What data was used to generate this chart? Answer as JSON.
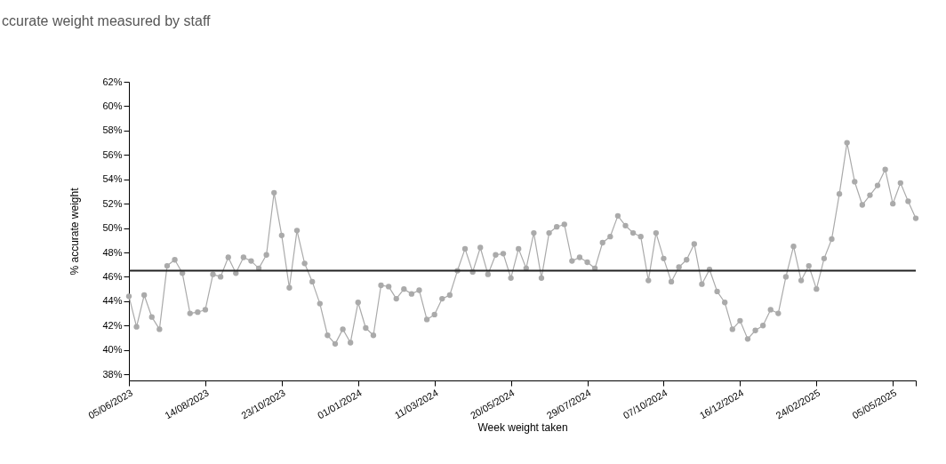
{
  "chart_data": {
    "type": "line",
    "subtitle": "ccurate weight measured by staff",
    "xlabel": "Week weight taken",
    "ylabel": "% accurate weight",
    "x": [
      "2023-06-05",
      "2023-06-12",
      "2023-06-19",
      "2023-06-26",
      "2023-07-03",
      "2023-07-10",
      "2023-07-17",
      "2023-07-24",
      "2023-07-31",
      "2023-08-07",
      "2023-08-14",
      "2023-08-21",
      "2023-08-28",
      "2023-09-04",
      "2023-09-11",
      "2023-09-18",
      "2023-09-25",
      "2023-10-02",
      "2023-10-09",
      "2023-10-16",
      "2023-10-23",
      "2023-10-30",
      "2023-11-06",
      "2023-11-13",
      "2023-11-20",
      "2023-11-27",
      "2023-12-04",
      "2023-12-11",
      "2023-12-18",
      "2023-12-25",
      "2024-01-01",
      "2024-01-08",
      "2024-01-15",
      "2024-01-22",
      "2024-01-29",
      "2024-02-05",
      "2024-02-12",
      "2024-02-19",
      "2024-02-26",
      "2024-03-04",
      "2024-03-11",
      "2024-03-18",
      "2024-03-25",
      "2024-04-01",
      "2024-04-08",
      "2024-04-15",
      "2024-04-22",
      "2024-04-29",
      "2024-05-06",
      "2024-05-13",
      "2024-05-20",
      "2024-05-27",
      "2024-06-03",
      "2024-06-10",
      "2024-06-17",
      "2024-06-24",
      "2024-07-01",
      "2024-07-08",
      "2024-07-15",
      "2024-07-22",
      "2024-07-29",
      "2024-08-05",
      "2024-08-12",
      "2024-08-19",
      "2024-08-26",
      "2024-09-02",
      "2024-09-09",
      "2024-09-16",
      "2024-09-23",
      "2024-09-30",
      "2024-10-07",
      "2024-10-14",
      "2024-10-21",
      "2024-10-28",
      "2024-11-04",
      "2024-11-11",
      "2024-11-18",
      "2024-11-25",
      "2024-12-02",
      "2024-12-09",
      "2024-12-16",
      "2024-12-23",
      "2024-12-30",
      "2025-01-06",
      "2025-01-13",
      "2025-01-20",
      "2025-01-27",
      "2025-02-03",
      "2025-02-10",
      "2025-02-17",
      "2025-02-24",
      "2025-03-03",
      "2025-03-10",
      "2025-03-17",
      "2025-03-24",
      "2025-03-31",
      "2025-04-07",
      "2025-04-14",
      "2025-04-21",
      "2025-04-28",
      "2025-05-05",
      "2025-05-12",
      "2025-05-19",
      "2025-05-26"
    ],
    "series": [
      {
        "color": "#aaaaaa",
        "values": [
          44.4,
          41.9,
          44.5,
          42.7,
          41.7,
          46.9,
          47.4,
          46.3,
          43.0,
          43.1,
          43.3,
          46.2,
          46.0,
          47.6,
          46.3,
          47.6,
          47.3,
          46.7,
          47.8,
          52.9,
          49.4,
          45.1,
          49.8,
          47.1,
          45.6,
          43.8,
          41.2,
          40.5,
          41.7,
          40.6,
          43.9,
          41.8,
          41.2,
          45.3,
          45.2,
          44.2,
          45.0,
          44.6,
          44.9,
          42.5,
          42.9,
          44.2,
          44.5,
          46.5,
          48.3,
          46.4,
          48.4,
          46.2,
          47.8,
          47.9,
          45.9,
          48.3,
          46.7,
          49.6,
          45.9,
          49.6,
          50.1,
          50.3,
          47.3,
          47.6,
          47.2,
          46.7,
          48.8,
          49.3,
          51.0,
          50.2,
          49.6,
          49.3,
          45.7,
          49.6,
          47.5,
          45.6,
          46.8,
          47.4,
          48.7,
          45.4,
          46.6,
          44.8,
          43.9,
          41.7,
          42.4,
          40.9,
          41.6,
          42.0,
          43.3,
          43.0,
          46.0,
          48.5,
          45.7,
          46.9,
          45.0,
          47.5,
          49.1,
          52.8,
          57.0,
          53.8,
          51.9,
          52.7,
          53.5,
          54.8,
          52.0,
          53.7,
          52.2,
          50.8
        ]
      }
    ],
    "xlim": [
      "2023-06-05",
      "2025-05-26"
    ],
    "xticks": [
      {
        "value": "2023-06-05",
        "label": "05/06/2023"
      },
      {
        "value": "2023-08-14",
        "label": "14/08/2023"
      },
      {
        "value": "2023-10-23",
        "label": "23/10/2023"
      },
      {
        "value": "2024-01-01",
        "label": "01/01/2024"
      },
      {
        "value": "2024-03-11",
        "label": "11/03/2024"
      },
      {
        "value": "2024-05-20",
        "label": "20/05/2024"
      },
      {
        "value": "2024-07-29",
        "label": "29/07/2024"
      },
      {
        "value": "2024-10-07",
        "label": "07/10/2024"
      },
      {
        "value": "2024-12-16",
        "label": "16/12/2024"
      },
      {
        "value": "2025-02-24",
        "label": "24/02/2025"
      },
      {
        "value": "2025-05-05",
        "label": "05/05/2025"
      },
      {
        "value": "2025-05-26",
        "label": null
      }
    ],
    "ylim": [
      37.5,
      62
    ],
    "yticks": [
      {
        "value": 38,
        "label": "38%"
      },
      {
        "value": 40,
        "label": "40%"
      },
      {
        "value": 42,
        "label": "42%"
      },
      {
        "value": 44,
        "label": "44%"
      },
      {
        "value": 46,
        "label": "46%"
      },
      {
        "value": 48,
        "label": "48%"
      },
      {
        "value": 50,
        "label": "50%"
      },
      {
        "value": 52,
        "label": "52%"
      },
      {
        "value": 54,
        "label": "54%"
      },
      {
        "value": 56,
        "label": "56%"
      },
      {
        "value": 58,
        "label": "58%"
      },
      {
        "value": 60,
        "label": "60%"
      },
      {
        "value": 62,
        "label": "62%"
      }
    ],
    "ref_lines": [
      {
        "axis": "y",
        "value": 46.5,
        "color": "#222222"
      }
    ],
    "marker": "circle",
    "line_style": "solid",
    "grid": false
  }
}
